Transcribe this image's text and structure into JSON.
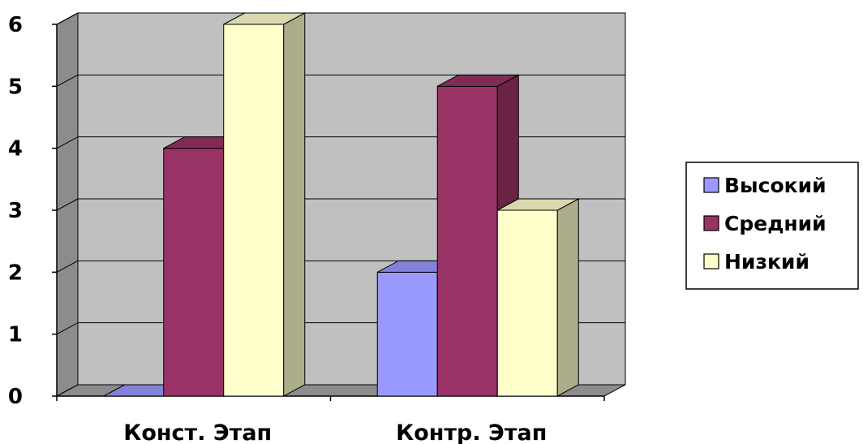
{
  "chart_data": {
    "type": "bar",
    "categories": [
      "Конст. Этап",
      "Контр. Этап"
    ],
    "series": [
      {
        "name": "Высокий",
        "values": [
          0,
          2
        ],
        "color": "#9999FF"
      },
      {
        "name": "Средний",
        "values": [
          4,
          5
        ],
        "color": "#993366"
      },
      {
        "name": "Низкий",
        "values": [
          6,
          3
        ],
        "color": "#FFFFCC"
      }
    ],
    "ylim": [
      0,
      6
    ],
    "yticks": [
      "0",
      "1",
      "2",
      "3",
      "4",
      "5",
      "6"
    ],
    "grid": true,
    "style": "3d-column",
    "legend": "right"
  }
}
